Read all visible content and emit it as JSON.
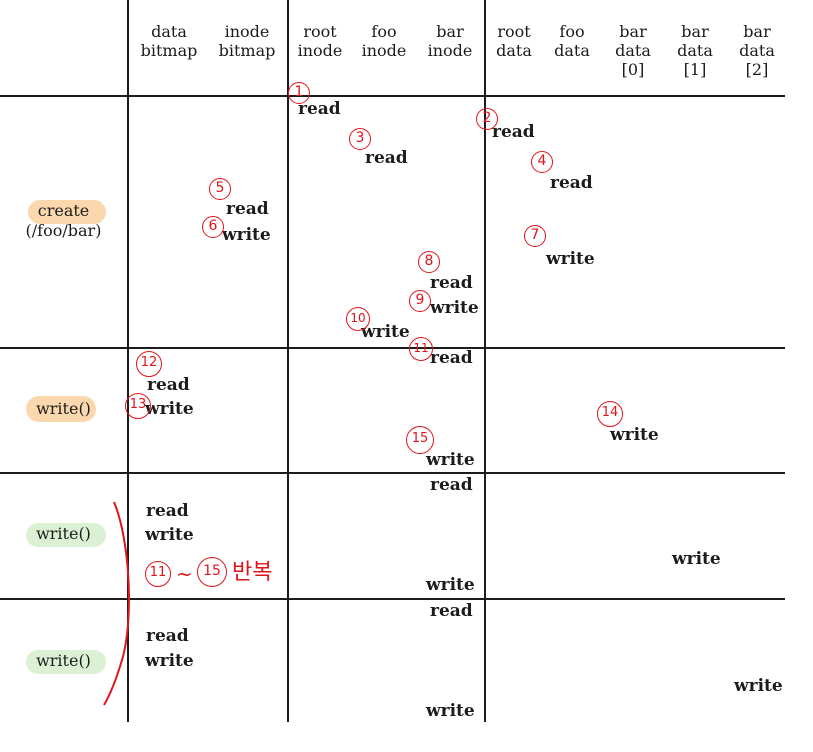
{
  "headers": [
    {
      "line1": "data",
      "line2": "bitmap",
      "line3": ""
    },
    {
      "line1": "inode",
      "line2": "bitmap",
      "line3": ""
    },
    {
      "line1": "root",
      "line2": "inode",
      "line3": ""
    },
    {
      "line1": "foo",
      "line2": "inode",
      "line3": ""
    },
    {
      "line1": "bar",
      "line2": "inode",
      "line3": ""
    },
    {
      "line1": "root",
      "line2": "data",
      "line3": ""
    },
    {
      "line1": "foo",
      "line2": "data",
      "line3": ""
    },
    {
      "line1": "bar",
      "line2": "data",
      "line3": "[0]"
    },
    {
      "line1": "bar",
      "line2": "data",
      "line3": "[1]"
    },
    {
      "line1": "bar",
      "line2": "data",
      "line3": "[2]"
    }
  ],
  "rows": [
    {
      "label": "create",
      "label2": "(/foo/bar)"
    },
    {
      "label": "write()",
      "label2": ""
    },
    {
      "label": "write()",
      "label2": ""
    },
    {
      "label": "write()",
      "label2": ""
    }
  ],
  "ops": {
    "read": "read",
    "write": "write"
  },
  "annotations": {
    "n1": "1",
    "n2": "2",
    "n3": "3",
    "n4": "4",
    "n5": "5",
    "n6": "6",
    "n7": "7",
    "n8": "8",
    "n9": "9",
    "n10": "10",
    "n11": "11",
    "n12": "12",
    "n13": "13",
    "n14": "14",
    "n15": "15",
    "repeat_start": "11",
    "repeat_tilde": "~",
    "repeat_end": "15",
    "repeat_text": "반복"
  },
  "colors": {
    "highlight_orange": "#fbd7ad",
    "highlight_green": "#dcf1d4",
    "annotation_red": "#e0151b"
  }
}
